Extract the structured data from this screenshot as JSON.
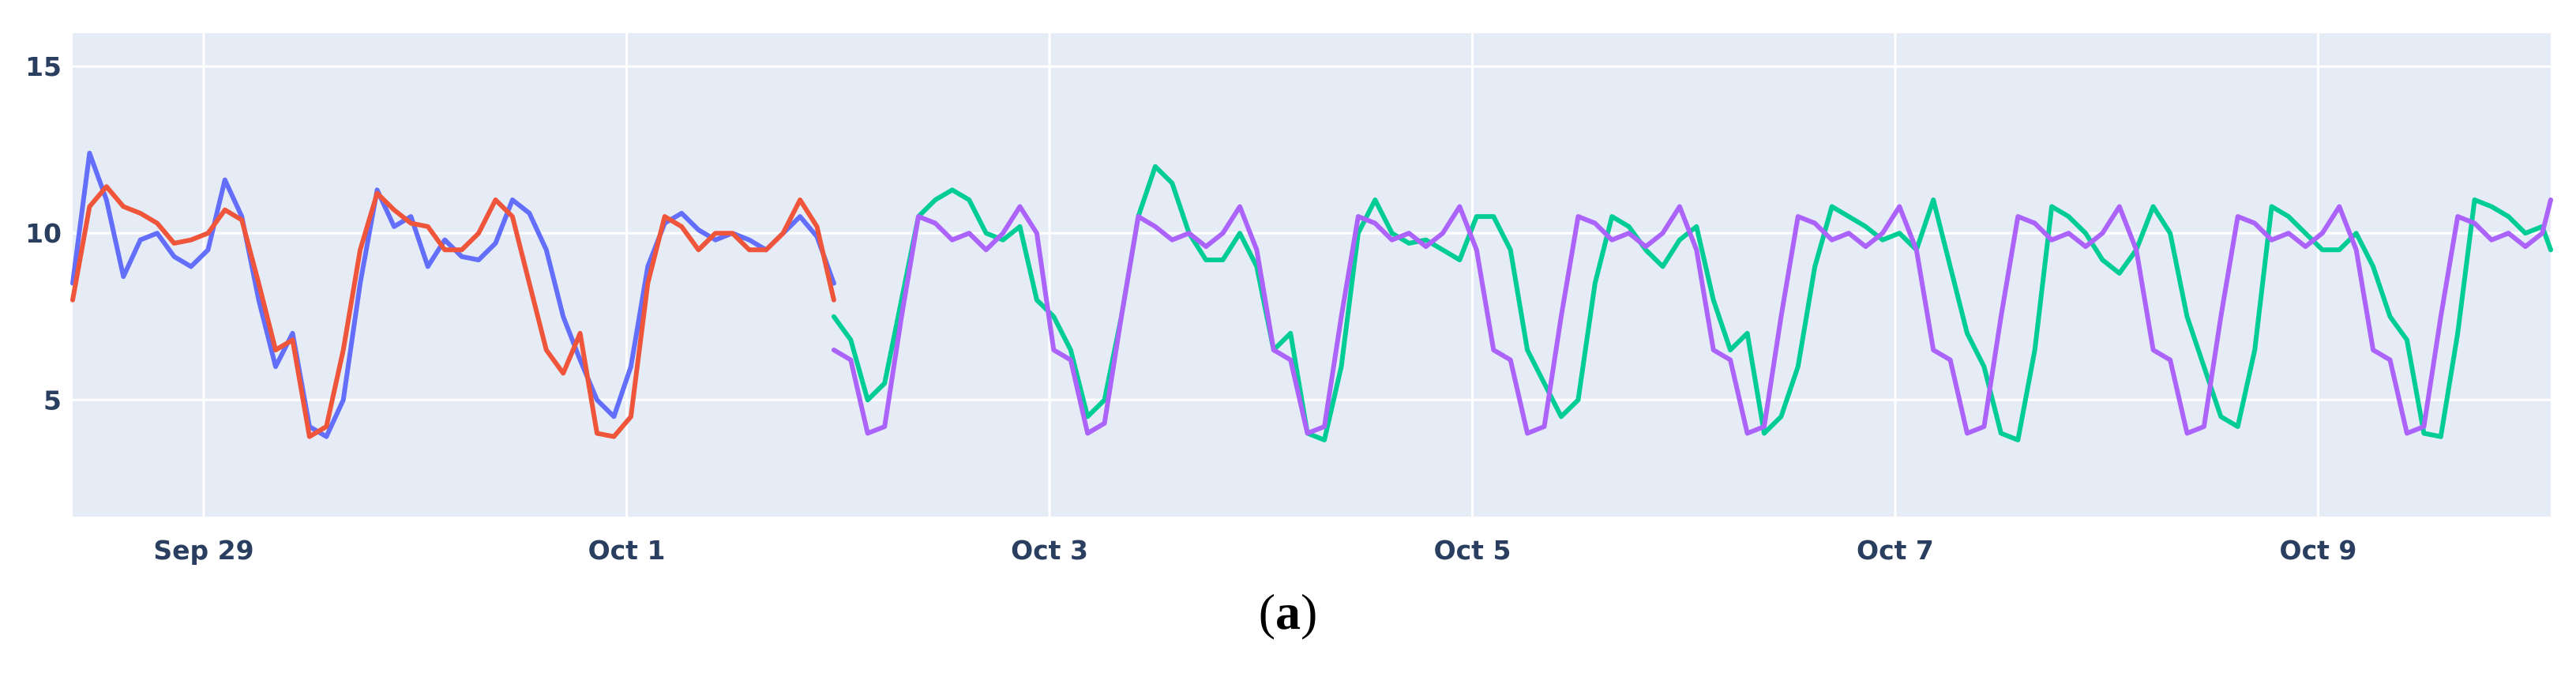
{
  "caption": {
    "open": "(",
    "letter": "a",
    "close": ")"
  },
  "colors": {
    "plot_bg": "#e5ecf6",
    "grid": "#ffffff",
    "tick_text": "#2a3f5f",
    "blue": "#636efa",
    "red": "#ef553b",
    "green": "#00cc96",
    "purple": "#ab63fa"
  },
  "chart_data": {
    "type": "line",
    "title": "",
    "xlabel": "",
    "ylabel": "",
    "x_ticks": [
      "Sep 29",
      "Oct 1",
      "Oct 3",
      "Oct 5",
      "Oct 7",
      "Oct 9"
    ],
    "y_ticks": [
      5,
      10,
      15
    ],
    "ylim": [
      1.5,
      16
    ],
    "x_unit": "days since Sep 28",
    "xlim": [
      0.38,
      12.1
    ],
    "grid": true,
    "series": [
      {
        "color": "#636efa",
        "x": [
          0.38,
          0.46,
          0.54,
          0.62,
          0.7,
          0.78,
          0.86,
          0.94,
          1.02,
          1.1,
          1.18,
          1.26,
          1.34,
          1.42,
          1.5,
          1.58,
          1.66,
          1.74,
          1.82,
          1.9,
          1.98,
          2.06,
          2.14,
          2.22,
          2.3,
          2.38,
          2.46,
          2.54,
          2.62,
          2.7,
          2.78,
          2.86,
          2.94,
          3.02,
          3.1,
          3.18,
          3.26,
          3.34,
          3.42,
          3.5,
          3.58,
          3.66,
          3.74,
          3.82,
          3.9,
          3.98
        ],
        "y": [
          8.5,
          12.4,
          11,
          8.7,
          9.8,
          10,
          9.3,
          9,
          9.5,
          11.6,
          10.5,
          8,
          6,
          7,
          4.2,
          3.9,
          5,
          8.5,
          11.3,
          10.2,
          10.5,
          9,
          9.8,
          9.3,
          9.2,
          9.7,
          11,
          10.6,
          9.5,
          7.5,
          6.2,
          5,
          4.5,
          6,
          9,
          10.3,
          10.6,
          10.1,
          9.8,
          10,
          9.8,
          9.5,
          10,
          10.5,
          9.9,
          8.5
        ]
      },
      {
        "color": "#ef553b",
        "x": [
          0.38,
          0.46,
          0.54,
          0.62,
          0.7,
          0.78,
          0.86,
          0.94,
          1.02,
          1.1,
          1.18,
          1.26,
          1.34,
          1.42,
          1.5,
          1.58,
          1.66,
          1.74,
          1.82,
          1.9,
          1.98,
          2.06,
          2.14,
          2.22,
          2.3,
          2.38,
          2.46,
          2.54,
          2.62,
          2.7,
          2.78,
          2.86,
          2.94,
          3.02,
          3.1,
          3.18,
          3.26,
          3.34,
          3.42,
          3.5,
          3.58,
          3.66,
          3.74,
          3.82,
          3.9,
          3.98
        ],
        "y": [
          8,
          10.8,
          11.4,
          10.8,
          10.6,
          10.3,
          9.7,
          9.8,
          10,
          10.7,
          10.4,
          8.5,
          6.5,
          6.8,
          3.9,
          4.2,
          6.5,
          9.5,
          11.2,
          10.7,
          10.3,
          10.2,
          9.5,
          9.5,
          10,
          11,
          10.5,
          8.5,
          6.5,
          5.8,
          7,
          4,
          3.9,
          4.5,
          8.5,
          10.5,
          10.2,
          9.5,
          10,
          10,
          9.5,
          9.5,
          10,
          11,
          10.2,
          8
        ]
      },
      {
        "color": "#00cc96",
        "x": [
          3.98,
          4.06,
          4.14,
          4.22,
          4.3,
          4.38,
          4.46,
          4.54,
          4.62,
          4.7,
          4.78,
          4.86,
          4.94,
          5.02,
          5.1,
          5.18,
          5.26,
          5.34,
          5.42,
          5.5,
          5.58,
          5.66,
          5.74,
          5.82,
          5.9,
          5.98,
          6.06,
          6.14,
          6.22,
          6.3,
          6.38,
          6.46,
          6.54,
          6.62,
          6.7,
          6.78,
          6.86,
          6.94,
          7.02,
          7.1,
          7.18,
          7.26,
          7.34,
          7.42,
          7.5,
          7.58,
          7.66,
          7.74,
          7.82,
          7.9,
          7.98,
          8.06,
          8.14,
          8.22,
          8.3,
          8.38,
          8.46,
          8.54,
          8.62,
          8.7,
          8.78,
          8.86,
          8.94,
          9.02,
          9.1,
          9.18,
          9.26,
          9.34,
          9.42,
          9.5,
          9.58,
          9.66,
          9.74,
          9.82,
          9.9,
          9.98,
          10.06,
          10.14,
          10.22,
          10.3,
          10.38,
          10.46,
          10.54,
          10.62,
          10.7,
          10.78,
          10.86,
          10.94,
          11.02,
          11.1,
          11.18,
          11.26,
          11.34,
          11.42,
          11.5,
          11.58,
          11.66,
          11.74,
          11.82,
          11.9,
          11.98,
          12.06,
          12.1
        ],
        "y": [
          7.5,
          6.8,
          5,
          5.5,
          8,
          10.5,
          11,
          11.3,
          11,
          10,
          9.8,
          10.2,
          8,
          7.5,
          6.5,
          4.5,
          5,
          7.5,
          10.5,
          12,
          11.5,
          10,
          9.2,
          9.2,
          10,
          9,
          6.5,
          7,
          4,
          3.8,
          6,
          10,
          11,
          10,
          9.7,
          9.8,
          9.5,
          9.2,
          10.5,
          10.5,
          9.5,
          6.5,
          5.5,
          4.5,
          5,
          8.5,
          10.5,
          10.2,
          9.5,
          9,
          9.8,
          10.2,
          8,
          6.5,
          7,
          4,
          4.5,
          6,
          9,
          10.8,
          10.5,
          10.2,
          9.8,
          10,
          9.5,
          11,
          9,
          7,
          6,
          4,
          3.8,
          6.5,
          10.8,
          10.5,
          10,
          9.2,
          8.8,
          9.5,
          10.8,
          10,
          7.5,
          6,
          4.5,
          4.2,
          6.5,
          10.8,
          10.5,
          10,
          9.5,
          9.5,
          10,
          9,
          7.5,
          6.8,
          4,
          3.9,
          7,
          11,
          10.8,
          10.5,
          10,
          10.2,
          9.5
        ]
      },
      {
        "color": "#ab63fa",
        "x": [
          3.98,
          4.06,
          4.14,
          4.22,
          4.3,
          4.38,
          4.46,
          4.54,
          4.62,
          4.7,
          4.78,
          4.86,
          4.94,
          5.02,
          5.1,
          5.18,
          5.26,
          5.34,
          5.42,
          5.5,
          5.58,
          5.66,
          5.74,
          5.82,
          5.9,
          5.98,
          6.06,
          6.14,
          6.22,
          6.3,
          6.38,
          6.46,
          6.54,
          6.62,
          6.7,
          6.78,
          6.86,
          6.94,
          7.02,
          7.1,
          7.18,
          7.26,
          7.34,
          7.42,
          7.5,
          7.58,
          7.66,
          7.74,
          7.82,
          7.9,
          7.98,
          8.06,
          8.14,
          8.22,
          8.3,
          8.38,
          8.46,
          8.54,
          8.62,
          8.7,
          8.78,
          8.86,
          8.94,
          9.02,
          9.1,
          9.18,
          9.26,
          9.34,
          9.42,
          9.5,
          9.58,
          9.66,
          9.74,
          9.82,
          9.9,
          9.98,
          10.06,
          10.14,
          10.22,
          10.3,
          10.38,
          10.46,
          10.54,
          10.62,
          10.7,
          10.78,
          10.86,
          10.94,
          11.02,
          11.1,
          11.18,
          11.26,
          11.34,
          11.42,
          11.5,
          11.58,
          11.66,
          11.74,
          11.82,
          11.9,
          11.98,
          12.06,
          12.1
        ],
        "y": [
          6.5,
          6.2,
          4,
          4.2,
          7.5,
          10.5,
          10.3,
          9.8,
          10,
          9.5,
          10,
          10.8,
          10,
          6.5,
          6.2,
          4,
          4.3,
          7.5,
          10.5,
          10.2,
          9.8,
          10,
          9.6,
          10,
          10.8,
          9.5,
          6.5,
          6.2,
          4,
          4.2,
          7.5,
          10.5,
          10.3,
          9.8,
          10,
          9.6,
          10,
          10.8,
          9.5,
          6.5,
          6.2,
          4,
          4.2,
          7.5,
          10.5,
          10.3,
          9.8,
          10,
          9.6,
          10,
          10.8,
          9.5,
          6.5,
          6.2,
          4,
          4.2,
          7.5,
          10.5,
          10.3,
          9.8,
          10,
          9.6,
          10,
          10.8,
          9.5,
          6.5,
          6.2,
          4,
          4.2,
          7.5,
          10.5,
          10.3,
          9.8,
          10,
          9.6,
          10,
          10.8,
          9.5,
          6.5,
          6.2,
          4,
          4.2,
          7.5,
          10.5,
          10.3,
          9.8,
          10,
          9.6,
          10,
          10.8,
          9.5,
          6.5,
          6.2,
          4,
          4.2,
          7.5,
          10.5,
          10.3,
          9.8,
          10,
          9.6,
          10,
          11
        ]
      }
    ]
  }
}
